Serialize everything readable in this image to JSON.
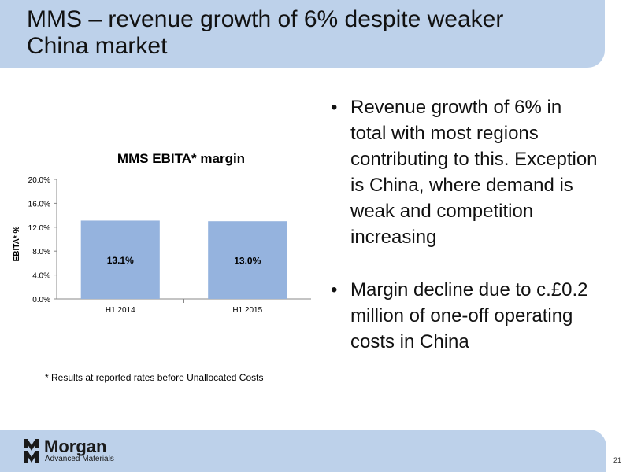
{
  "slide": {
    "title_line1": "MMS – revenue growth of 6% despite weaker",
    "title_line2": "China market",
    "bullets": [
      "Revenue growth of 6% in total with most regions contributing to this. Exception is China, where demand is weak and competition increasing",
      "Margin decline due to c.£0.2 million of one-off operating costs in China"
    ],
    "bullet_symbol": "•",
    "footnote": "* Results at reported rates before Unallocated Costs",
    "page_number": "21"
  },
  "logo": {
    "name": "Morgan",
    "subtitle": "Advanced Materials"
  },
  "chart_data": {
    "type": "bar",
    "title": "MMS EBITA* margin",
    "ylabel": "EBITA* %",
    "xlabel": "",
    "categories": [
      "H1 2014",
      "H1 2015"
    ],
    "values": [
      13.1,
      13.0
    ],
    "data_labels": [
      "13.1%",
      "13.0%"
    ],
    "ylim": [
      0,
      20
    ],
    "y_ticks": [
      0,
      4,
      8,
      12,
      16,
      20
    ],
    "y_tick_labels": [
      "0.0%",
      "4.0%",
      "8.0%",
      "12.0%",
      "16.0%",
      "20.0%"
    ],
    "grid": false,
    "legend": "none",
    "bar_color": "#95b3de"
  }
}
